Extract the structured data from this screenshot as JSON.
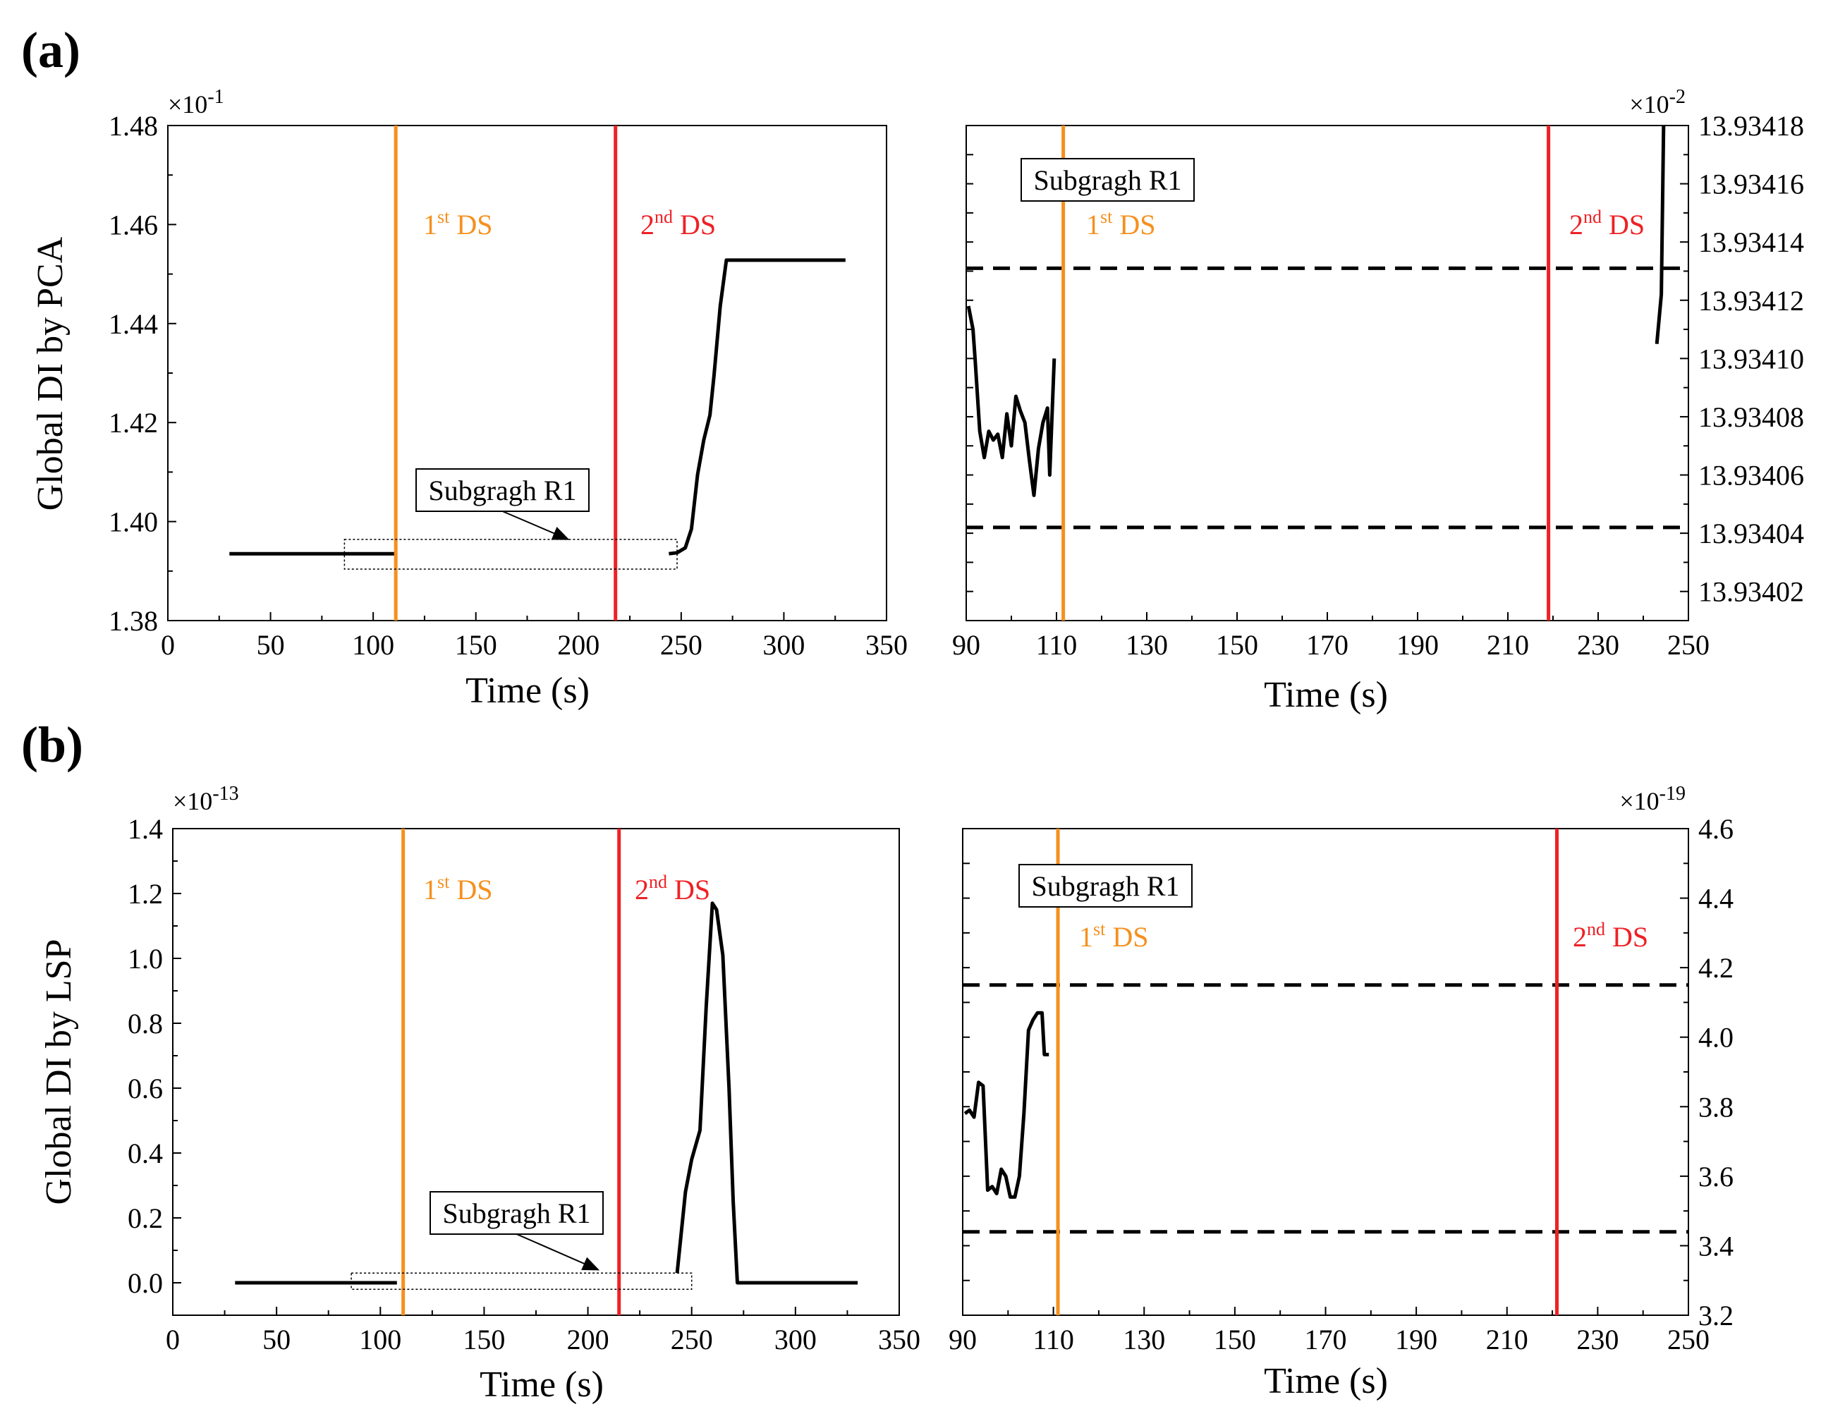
{
  "panel_letters": {
    "a": "(a)",
    "b": "(b)"
  },
  "chart_data": [
    {
      "id": "a-left",
      "type": "line",
      "panel": "a",
      "ylabel": "Global DI by PCA",
      "xlabel": "Time (s)",
      "exponent": {
        "base": "×10",
        "power": "-1"
      },
      "xlim": [
        0,
        350
      ],
      "ylim": [
        1.38,
        1.48
      ],
      "xticks": [
        "0",
        "50",
        "100",
        "150",
        "200",
        "250",
        "300",
        "350"
      ],
      "xtick_values": [
        0,
        50,
        100,
        150,
        200,
        250,
        300,
        350
      ],
      "yticks": [
        "1.38",
        "1.40",
        "1.42",
        "1.44",
        "1.46",
        "1.48"
      ],
      "ytick_values": [
        1.38,
        1.4,
        1.42,
        1.44,
        1.46,
        1.48
      ],
      "series": [
        {
          "name": "Global DI",
          "segments": [
            [
              [
                30,
                1.3935
              ],
              [
                111,
                1.3935
              ]
            ],
            [
              [
                244,
                1.3935
              ],
              [
                248,
                1.3937
              ],
              [
                252,
                1.3947
              ],
              [
                255,
                1.3985
              ],
              [
                258,
                1.4095
              ],
              [
                261,
                1.4165
              ],
              [
                264,
                1.4215
              ],
              [
                266,
                1.4295
              ],
              [
                269,
                1.4435
              ],
              [
                272,
                1.4528
              ],
              [
                330,
                1.4528
              ]
            ]
          ]
        }
      ],
      "vlines": [
        {
          "x": 111,
          "label": "1",
          "sup": "st",
          "suffix": " DS",
          "color": "#F5901E"
        },
        {
          "x": 218,
          "label": "2",
          "sup": "nd",
          "suffix": " DS",
          "color": "#EE2125"
        }
      ],
      "annotation": {
        "text": "Subgragh R1",
        "box": {
          "x": [
            86,
            248
          ],
          "y": [
            1.3904,
            1.3964
          ]
        },
        "arrow_to": [
          195,
          1.3964
        ]
      }
    },
    {
      "id": "a-right",
      "type": "line",
      "panel": "a",
      "xlabel": "Time (s)",
      "exponent": {
        "base": "×10",
        "power": "-2"
      },
      "xlim": [
        90,
        250
      ],
      "ylim": [
        13.93401,
        13.93418
      ],
      "xticks": [
        "90",
        "110",
        "130",
        "150",
        "170",
        "190",
        "210",
        "230",
        "250"
      ],
      "xtick_values": [
        90,
        110,
        130,
        150,
        170,
        190,
        210,
        230,
        250
      ],
      "yticks": [
        "13.93402",
        "13.93404",
        "13.93406",
        "13.93408",
        "13.93410",
        "13.93412",
        "13.93414",
        "13.93416",
        "13.93418"
      ],
      "ytick_values": [
        13.93402,
        13.93404,
        13.93406,
        13.93408,
        13.9341,
        13.93412,
        13.93414,
        13.93416,
        13.93418
      ],
      "series": [
        {
          "name": "Global DI",
          "segments": [
            [
              [
                90.5,
                13.934118
              ],
              [
                91.5,
                13.93411
              ],
              [
                92,
                13.934099
              ],
              [
                93,
                13.934075
              ],
              [
                94,
                13.934066
              ],
              [
                95,
                13.934075
              ],
              [
                96,
                13.934072
              ],
              [
                97,
                13.934074
              ],
              [
                98,
                13.934066
              ],
              [
                99,
                13.934081
              ],
              [
                100,
                13.93407
              ],
              [
                101,
                13.934087
              ],
              [
                102,
                13.934082
              ],
              [
                103,
                13.934078
              ],
              [
                104,
                13.934065
              ],
              [
                105,
                13.934053
              ],
              [
                106,
                13.934069
              ],
              [
                107,
                13.934078
              ],
              [
                108,
                13.934083
              ],
              [
                108.5,
                13.93406
              ],
              [
                109.5,
                13.9341
              ]
            ],
            [
              [
                243,
                13.934105
              ],
              [
                244,
                13.934122
              ],
              [
                244.5,
                13.93418
              ]
            ]
          ]
        }
      ],
      "hlines": [
        13.934131,
        13.934042
      ],
      "vlines": [
        {
          "x": 111.5,
          "label": "1",
          "sup": "st",
          "suffix": " DS",
          "color": "#F5901E"
        },
        {
          "x": 219,
          "label": "2",
          "sup": "nd",
          "suffix": " DS",
          "color": "#EE2125"
        }
      ],
      "annotation": {
        "text": "Subgragh R1"
      }
    },
    {
      "id": "b-left",
      "type": "line",
      "panel": "b",
      "ylabel": "Global DI by LSP",
      "xlabel": "Time (s)",
      "exponent": {
        "base": "×10",
        "power": "-13"
      },
      "xlim": [
        0,
        350
      ],
      "ylim": [
        -0.1,
        1.4
      ],
      "xticks": [
        "0",
        "50",
        "100",
        "150",
        "200",
        "250",
        "300",
        "350"
      ],
      "xtick_values": [
        0,
        50,
        100,
        150,
        200,
        250,
        300,
        350
      ],
      "yticks": [
        "0.0",
        "0.2",
        "0.4",
        "0.6",
        "0.8",
        "1.0",
        "1.2",
        "1.4"
      ],
      "ytick_values": [
        0,
        0.2,
        0.4,
        0.6,
        0.8,
        1.0,
        1.2,
        1.4
      ],
      "series": [
        {
          "name": "Global DI",
          "segments": [
            [
              [
                30,
                0.0
              ],
              [
                108,
                0.0
              ]
            ],
            [
              [
                243,
                0.03
              ],
              [
                247,
                0.28
              ],
              [
                250,
                0.38
              ],
              [
                254,
                0.47
              ],
              [
                257,
                0.85
              ],
              [
                260,
                1.17
              ],
              [
                262,
                1.15
              ],
              [
                265,
                1.01
              ],
              [
                268,
                0.6
              ],
              [
                270,
                0.25
              ],
              [
                272,
                0.0
              ],
              [
                330,
                0.0
              ]
            ]
          ]
        }
      ],
      "vlines": [
        {
          "x": 111,
          "label": "1",
          "sup": "st",
          "suffix": " DS",
          "color": "#F5901E"
        },
        {
          "x": 215,
          "label": "2",
          "sup": "nd",
          "suffix": " DS",
          "color": "#EE2125"
        }
      ],
      "annotation": {
        "text": "Subgragh R1",
        "box": {
          "x": [
            86,
            250
          ],
          "y": [
            -0.02,
            0.03
          ]
        },
        "arrow_to": [
          205,
          0.04
        ]
      }
    },
    {
      "id": "b-right",
      "type": "line",
      "panel": "b",
      "xlabel": "Time (s)",
      "exponent": {
        "base": "×10",
        "power": "-19"
      },
      "xlim": [
        90,
        250
      ],
      "ylim": [
        3.2,
        4.6
      ],
      "xticks": [
        "90",
        "110",
        "130",
        "150",
        "170",
        "190",
        "210",
        "230",
        "250"
      ],
      "xtick_values": [
        90,
        110,
        130,
        150,
        170,
        190,
        210,
        230,
        250
      ],
      "yticks": [
        "3.2",
        "3.4",
        "3.6",
        "3.8",
        "4.0",
        "4.2",
        "4.4",
        "4.6"
      ],
      "ytick_values": [
        3.2,
        3.4,
        3.6,
        3.8,
        4.0,
        4.2,
        4.4,
        4.6
      ],
      "series": [
        {
          "name": "Global DI",
          "segments": [
            [
              [
                90.5,
                3.78
              ],
              [
                91.5,
                3.79
              ],
              [
                92.5,
                3.77
              ],
              [
                93.5,
                3.87
              ],
              [
                94.5,
                3.86
              ],
              [
                95.5,
                3.56
              ],
              [
                96.5,
                3.57
              ],
              [
                97.5,
                3.55
              ],
              [
                98.5,
                3.62
              ],
              [
                99.5,
                3.6
              ],
              [
                100.5,
                3.54
              ],
              [
                101.5,
                3.54
              ],
              [
                102.5,
                3.6
              ],
              [
                103.5,
                3.78
              ],
              [
                104.5,
                4.02
              ],
              [
                105.5,
                4.05
              ],
              [
                106.5,
                4.07
              ],
              [
                107.5,
                4.07
              ],
              [
                108,
                3.95
              ],
              [
                109,
                3.95
              ]
            ]
          ]
        }
      ],
      "hlines": [
        4.15,
        3.44
      ],
      "vlines": [
        {
          "x": 111,
          "label": "1",
          "sup": "st",
          "suffix": " DS",
          "color": "#F5901E"
        },
        {
          "x": 221,
          "label": "2",
          "sup": "nd",
          "suffix": " DS",
          "color": "#EE2125"
        }
      ],
      "annotation": {
        "text": "Subgragh R1"
      }
    }
  ]
}
